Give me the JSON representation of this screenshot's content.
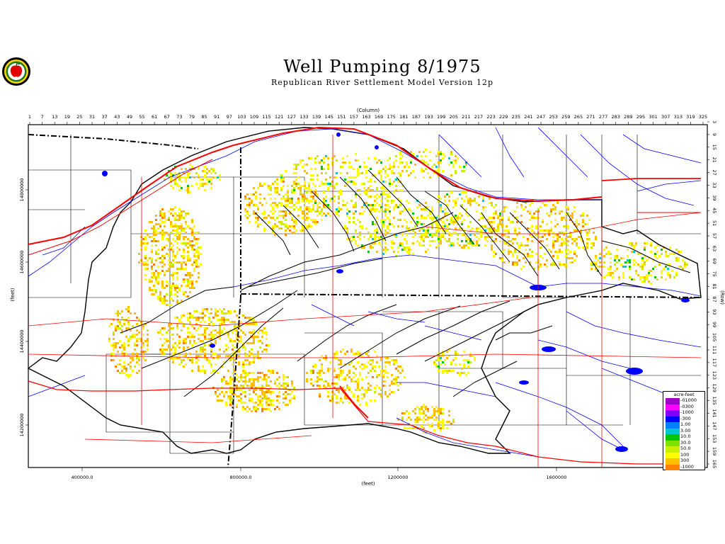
{
  "header": {
    "title": "Well Pumping   8/1975",
    "subtitle": "Republican River Settlement Model Version 12p"
  },
  "logo": {
    "icon": "apple-seal-icon",
    "colors": [
      "#000000",
      "#ffd800",
      "#e00000",
      "#1e7a1e"
    ]
  },
  "axes": {
    "column_label": "(Column)",
    "row_label": "(Row)",
    "x_feet_label": "(feet)",
    "y_feet_label": "(feet)",
    "column_ticks": [
      "1",
      "7",
      "13",
      "19",
      "25",
      "31",
      "37",
      "43",
      "49",
      "55",
      "61",
      "67",
      "73",
      "79",
      "85",
      "91",
      "97",
      "103",
      "109",
      "115",
      "121",
      "127",
      "133",
      "139",
      "145",
      "151",
      "157",
      "163",
      "169",
      "175",
      "181",
      "187",
      "193",
      "199",
      "205",
      "211",
      "217",
      "223",
      "229",
      "235",
      "241",
      "247",
      "253",
      "259",
      "265",
      "271",
      "277",
      "283",
      "289",
      "295",
      "301",
      "307",
      "313",
      "319",
      "325"
    ],
    "row_ticks": [
      "3",
      "9",
      "15",
      "21",
      "27",
      "33",
      "39",
      "45",
      "51",
      "57",
      "63",
      "69",
      "75",
      "81",
      "87",
      "93",
      "99",
      "105",
      "111",
      "117",
      "123",
      "129",
      "135",
      "141",
      "147",
      "153",
      "159",
      "165"
    ],
    "x_feet_ticks": [
      "400000.0",
      "800000.0",
      "1200000",
      "1600000"
    ],
    "y_feet_ticks": [
      "14800000",
      "14600000",
      "14400000",
      "14200000"
    ]
  },
  "legend": {
    "title": "acre-feet",
    "items": [
      {
        "label": "-01000",
        "color": "#a000c8"
      },
      {
        "label": "-0300",
        "color": "#ff00ff"
      },
      {
        "label": "-1000",
        "color": "#8000ff"
      },
      {
        "label": "-300",
        "color": "#0000ff"
      },
      {
        "label": "1.00",
        "color": "#0080ff"
      },
      {
        "label": "3.00",
        "color": "#00c8c8"
      },
      {
        "label": "10.0",
        "color": "#00c800"
      },
      {
        "label": "30.0",
        "color": "#80e000"
      },
      {
        "label": "50.0",
        "color": "#c8f000"
      },
      {
        "label": "100",
        "color": "#ffff00"
      },
      {
        "label": "300",
        "color": "#ffc000"
      },
      {
        "label": "-1000",
        "color": "#ff8000"
      }
    ]
  },
  "colors": {
    "river": "#0000ff",
    "highway": "#ff0000",
    "boundary": "#000000",
    "frame": "#000000"
  }
}
